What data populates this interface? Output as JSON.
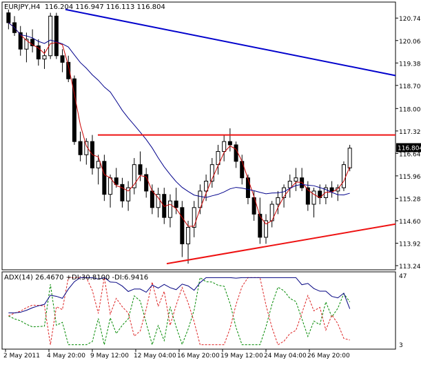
{
  "main": {
    "symbol": "EURJPY,H4",
    "open": "116.204",
    "high": "116.947",
    "low": "116.113",
    "close": "116.804",
    "current_price_badge": "116.804",
    "price_ticks": [
      "120.740",
      "120.060",
      "119.380",
      "118.700",
      "118.000",
      "117.320",
      "116.640",
      "115.960",
      "115.280",
      "114.600",
      "113.920",
      "113.240"
    ]
  },
  "indicator": {
    "title": "ADX(14) 26.4670 +DI:30.8100 -DI:6.9416",
    "scale_max": "47",
    "scale_min": "3"
  },
  "time_axis": [
    "2 May 2011",
    "4 May 20:00",
    "9 May 12:00",
    "12 May 04:00",
    "16 May 20:00",
    "19 May 12:00",
    "24 May 04:00",
    "26 May 20:00"
  ],
  "colors": {
    "bull_candle": "#ffffff",
    "bear_candle": "#000000",
    "ma_fast": "#cc0000",
    "ma_slow": "#00008b",
    "trendline_blue": "#0000cc",
    "trendline_red": "#ee1111",
    "adx": "#000080",
    "plus_di": "#008800",
    "minus_di": "#dd2222"
  },
  "chart_data": {
    "type": "candlestick",
    "title": "EURJPY,H4",
    "ylim": [
      113.24,
      121.1
    ],
    "ohlc_approx": [
      [
        120.9,
        121.0,
        120.4,
        120.6
      ],
      [
        120.6,
        120.8,
        120.2,
        120.3
      ],
      [
        120.3,
        120.5,
        119.6,
        119.8
      ],
      [
        119.8,
        120.3,
        119.4,
        120.1
      ],
      [
        120.1,
        120.4,
        119.7,
        119.9
      ],
      [
        119.9,
        120.1,
        119.3,
        119.5
      ],
      [
        119.5,
        119.8,
        119.2,
        119.6
      ],
      [
        119.6,
        120.9,
        119.5,
        120.8
      ],
      [
        120.8,
        120.9,
        119.5,
        119.6
      ],
      [
        119.6,
        119.8,
        119.1,
        119.4
      ],
      [
        119.4,
        119.6,
        118.8,
        118.9
      ],
      [
        118.9,
        119.0,
        116.9,
        117.0
      ],
      [
        117.0,
        117.3,
        116.4,
        116.6
      ],
      [
        116.6,
        117.1,
        116.3,
        117.0
      ],
      [
        117.0,
        117.2,
        116.0,
        116.2
      ],
      [
        116.2,
        116.6,
        115.7,
        116.4
      ],
      [
        116.4,
        116.6,
        115.2,
        115.4
      ],
      [
        115.4,
        116.0,
        115.0,
        115.9
      ],
      [
        115.9,
        116.2,
        115.6,
        115.7
      ],
      [
        115.7,
        115.9,
        115.0,
        115.2
      ],
      [
        115.2,
        115.8,
        114.9,
        115.6
      ],
      [
        115.6,
        116.5,
        115.4,
        116.3
      ],
      [
        116.3,
        116.7,
        115.8,
        116.0
      ],
      [
        116.0,
        116.2,
        115.3,
        115.5
      ],
      [
        115.5,
        115.7,
        114.8,
        115.0
      ],
      [
        115.0,
        115.6,
        114.7,
        115.4
      ],
      [
        115.4,
        115.6,
        114.5,
        114.7
      ],
      [
        114.7,
        115.4,
        114.4,
        115.2
      ],
      [
        115.2,
        115.6,
        114.8,
        115.0
      ],
      [
        115.0,
        115.2,
        113.5,
        113.9
      ],
      [
        113.9,
        114.6,
        113.3,
        114.4
      ],
      [
        114.4,
        115.2,
        114.1,
        115.0
      ],
      [
        115.0,
        115.7,
        114.8,
        115.5
      ],
      [
        115.5,
        116.0,
        115.2,
        115.8
      ],
      [
        115.8,
        116.5,
        115.6,
        116.3
      ],
      [
        116.3,
        116.9,
        116.0,
        116.7
      ],
      [
        116.7,
        117.2,
        116.4,
        117.0
      ],
      [
        117.0,
        117.4,
        116.7,
        116.9
      ],
      [
        116.9,
        117.0,
        116.2,
        116.4
      ],
      [
        116.4,
        116.6,
        115.7,
        115.9
      ],
      [
        115.9,
        116.0,
        115.1,
        115.3
      ],
      [
        115.3,
        115.5,
        114.6,
        114.8
      ],
      [
        114.8,
        115.3,
        113.9,
        114.1
      ],
      [
        114.1,
        114.8,
        113.9,
        114.6
      ],
      [
        114.6,
        115.2,
        114.4,
        115.1
      ],
      [
        115.1,
        115.5,
        114.8,
        115.3
      ],
      [
        115.3,
        115.7,
        115.0,
        115.6
      ],
      [
        115.6,
        116.0,
        115.3,
        115.8
      ],
      [
        115.8,
        116.2,
        115.5,
        115.9
      ],
      [
        115.9,
        116.2,
        115.5,
        115.6
      ],
      [
        115.6,
        115.8,
        114.9,
        115.1
      ],
      [
        115.1,
        115.6,
        114.7,
        115.5
      ],
      [
        115.5,
        115.7,
        115.1,
        115.3
      ],
      [
        115.3,
        115.7,
        115.1,
        115.6
      ],
      [
        115.6,
        115.8,
        115.3,
        115.5
      ],
      [
        115.5,
        115.7,
        115.2,
        115.6
      ],
      [
        115.6,
        116.4,
        115.5,
        116.3
      ],
      [
        116.2,
        116.9,
        116.1,
        116.8
      ]
    ],
    "trendlines": [
      {
        "name": "blue downtrend",
        "color": "blue",
        "from_price": 121.0,
        "to_price": 119.0
      },
      {
        "name": "horizontal resistance",
        "color": "red",
        "price": 117.2
      },
      {
        "name": "rising support",
        "color": "red",
        "from_price": 113.3,
        "to_price": 114.5
      }
    ],
    "adx_series": {
      "adx_last": 26.467,
      "plus_di_last": 30.81,
      "minus_di_last": 6.9416,
      "range": [
        3,
        47
      ]
    }
  }
}
